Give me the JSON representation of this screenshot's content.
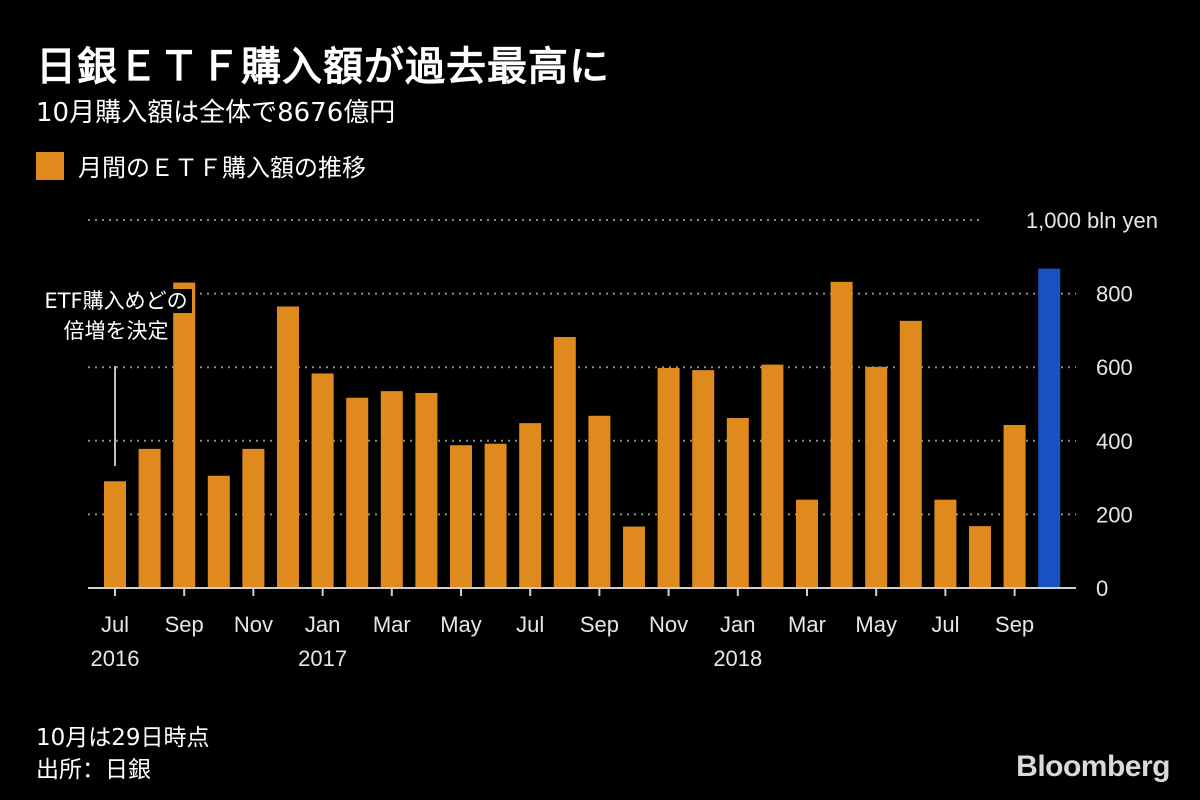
{
  "title": "日銀ＥＴＦ購入額が過去最高に",
  "subtitle": "10月購入額は全体で8676億円",
  "legend": {
    "label": "月間のＥＴＦ購入額の推移",
    "color": "#e08a1e"
  },
  "annotation": {
    "line1": "ETF購入めどの",
    "line2": "倍増を決定"
  },
  "footnote": {
    "note": "10月は29日時点",
    "source": "出所：日銀"
  },
  "logo": "Bloomberg",
  "chart_data": {
    "type": "bar",
    "unit_label": "1,000 bln yen",
    "ylim": [
      0,
      1000
    ],
    "yticks": [
      0,
      200,
      400,
      600,
      800
    ],
    "grid": true,
    "axis_side": "right",
    "bar_color": "#e08a1e",
    "highlight_color": "#1a52c4",
    "highlight_index": 27,
    "values": [
      290,
      378,
      830,
      305,
      378,
      765,
      583,
      517,
      535,
      530,
      388,
      392,
      448,
      682,
      468,
      167,
      598,
      592,
      462,
      607,
      240,
      832,
      601,
      726,
      240,
      168,
      443,
      868
    ],
    "x_ticks": [
      {
        "index": 0,
        "label": "Jul",
        "year": "2016"
      },
      {
        "index": 2,
        "label": "Sep"
      },
      {
        "index": 4,
        "label": "Nov"
      },
      {
        "index": 6,
        "label": "Jan",
        "year": "2017"
      },
      {
        "index": 8,
        "label": "Mar"
      },
      {
        "index": 10,
        "label": "May"
      },
      {
        "index": 12,
        "label": "Jul"
      },
      {
        "index": 14,
        "label": "Sep"
      },
      {
        "index": 16,
        "label": "Nov"
      },
      {
        "index": 18,
        "label": "Jan",
        "year": "2018"
      },
      {
        "index": 20,
        "label": "Mar"
      },
      {
        "index": 22,
        "label": "May"
      },
      {
        "index": 24,
        "label": "Jul"
      },
      {
        "index": 26,
        "label": "Sep"
      }
    ],
    "annotation_index": 0
  }
}
